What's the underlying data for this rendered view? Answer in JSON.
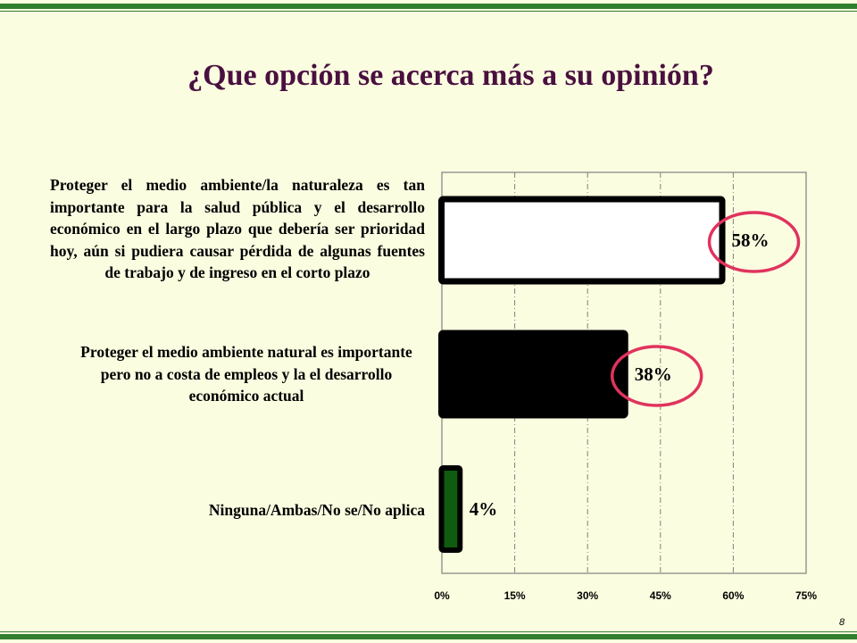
{
  "title": "¿Que opción se acerca más a su opinión?",
  "page_number": "8",
  "colors": {
    "frame": "#2f7f2f",
    "background": "#fbfde0",
    "title": "#4a1040",
    "highlight_circle": "#e0335e"
  },
  "chart_data": {
    "type": "bar",
    "orientation": "horizontal",
    "categories": [
      "Proteger el medio ambiente/la naturaleza es tan importante para la salud pública y el desarrollo económico en el largo plazo que debería ser prioridad hoy, aún si pudiera causar pérdida de algunas fuentes de trabajo y de ingreso en el corto plazo",
      "Proteger el medio ambiente natural es importante pero no a costa de empleos y la el desarrollo económico actual",
      "Ninguna/Ambas/No se/No aplica"
    ],
    "values": [
      58,
      38,
      4
    ],
    "value_labels": [
      "58%",
      "38%",
      "4%"
    ],
    "bar_colors": [
      "#ffffff",
      "#000000",
      "#0f5c0f"
    ],
    "highlighted": [
      true,
      true,
      false
    ],
    "xlim": [
      0,
      75
    ],
    "xticks": [
      0,
      15,
      30,
      45,
      60,
      75
    ],
    "xtick_labels": [
      "0%",
      "15%",
      "30%",
      "45%",
      "60%",
      "75%"
    ],
    "grid": "vertical dashed",
    "legend": "none",
    "title": "¿Que opción se acerca más a su opinión?",
    "xlabel": "",
    "ylabel": ""
  }
}
